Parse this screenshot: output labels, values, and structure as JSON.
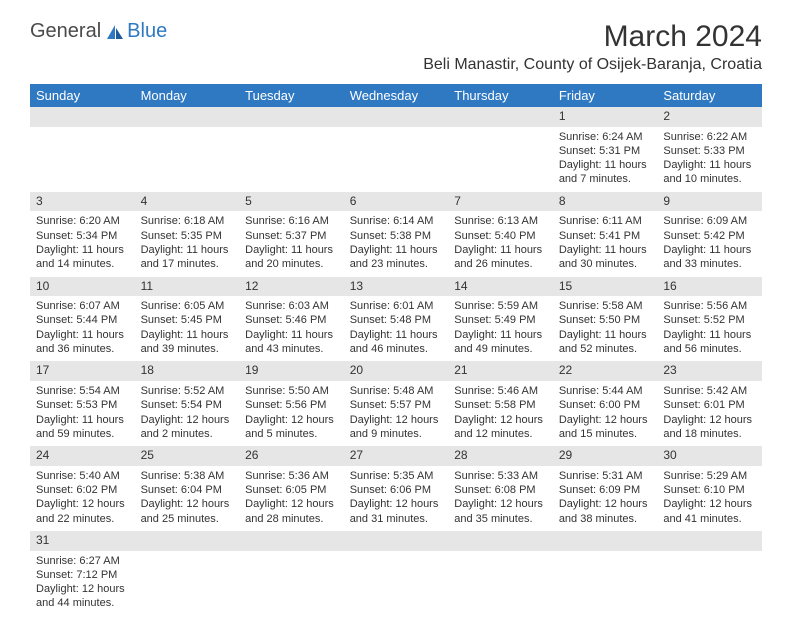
{
  "logo": {
    "word1": "General",
    "word2": "Blue"
  },
  "title": "March 2024",
  "location": "Beli Manastir, County of Osijek-Baranja, Croatia",
  "headers": [
    "Sunday",
    "Monday",
    "Tuesday",
    "Wednesday",
    "Thursday",
    "Friday",
    "Saturday"
  ],
  "colors": {
    "header_bg": "#2f78c2",
    "shade": "#e6e6e6",
    "accent": "#2f78c2"
  },
  "weeks": [
    [
      null,
      null,
      null,
      null,
      null,
      {
        "n": "1",
        "sr": "Sunrise: 6:24 AM",
        "ss": "Sunset: 5:31 PM",
        "d1": "Daylight: 11 hours",
        "d2": "and 7 minutes."
      },
      {
        "n": "2",
        "sr": "Sunrise: 6:22 AM",
        "ss": "Sunset: 5:33 PM",
        "d1": "Daylight: 11 hours",
        "d2": "and 10 minutes."
      }
    ],
    [
      {
        "n": "3",
        "sr": "Sunrise: 6:20 AM",
        "ss": "Sunset: 5:34 PM",
        "d1": "Daylight: 11 hours",
        "d2": "and 14 minutes."
      },
      {
        "n": "4",
        "sr": "Sunrise: 6:18 AM",
        "ss": "Sunset: 5:35 PM",
        "d1": "Daylight: 11 hours",
        "d2": "and 17 minutes."
      },
      {
        "n": "5",
        "sr": "Sunrise: 6:16 AM",
        "ss": "Sunset: 5:37 PM",
        "d1": "Daylight: 11 hours",
        "d2": "and 20 minutes."
      },
      {
        "n": "6",
        "sr": "Sunrise: 6:14 AM",
        "ss": "Sunset: 5:38 PM",
        "d1": "Daylight: 11 hours",
        "d2": "and 23 minutes."
      },
      {
        "n": "7",
        "sr": "Sunrise: 6:13 AM",
        "ss": "Sunset: 5:40 PM",
        "d1": "Daylight: 11 hours",
        "d2": "and 26 minutes."
      },
      {
        "n": "8",
        "sr": "Sunrise: 6:11 AM",
        "ss": "Sunset: 5:41 PM",
        "d1": "Daylight: 11 hours",
        "d2": "and 30 minutes."
      },
      {
        "n": "9",
        "sr": "Sunrise: 6:09 AM",
        "ss": "Sunset: 5:42 PM",
        "d1": "Daylight: 11 hours",
        "d2": "and 33 minutes."
      }
    ],
    [
      {
        "n": "10",
        "sr": "Sunrise: 6:07 AM",
        "ss": "Sunset: 5:44 PM",
        "d1": "Daylight: 11 hours",
        "d2": "and 36 minutes."
      },
      {
        "n": "11",
        "sr": "Sunrise: 6:05 AM",
        "ss": "Sunset: 5:45 PM",
        "d1": "Daylight: 11 hours",
        "d2": "and 39 minutes."
      },
      {
        "n": "12",
        "sr": "Sunrise: 6:03 AM",
        "ss": "Sunset: 5:46 PM",
        "d1": "Daylight: 11 hours",
        "d2": "and 43 minutes."
      },
      {
        "n": "13",
        "sr": "Sunrise: 6:01 AM",
        "ss": "Sunset: 5:48 PM",
        "d1": "Daylight: 11 hours",
        "d2": "and 46 minutes."
      },
      {
        "n": "14",
        "sr": "Sunrise: 5:59 AM",
        "ss": "Sunset: 5:49 PM",
        "d1": "Daylight: 11 hours",
        "d2": "and 49 minutes."
      },
      {
        "n": "15",
        "sr": "Sunrise: 5:58 AM",
        "ss": "Sunset: 5:50 PM",
        "d1": "Daylight: 11 hours",
        "d2": "and 52 minutes."
      },
      {
        "n": "16",
        "sr": "Sunrise: 5:56 AM",
        "ss": "Sunset: 5:52 PM",
        "d1": "Daylight: 11 hours",
        "d2": "and 56 minutes."
      }
    ],
    [
      {
        "n": "17",
        "sr": "Sunrise: 5:54 AM",
        "ss": "Sunset: 5:53 PM",
        "d1": "Daylight: 11 hours",
        "d2": "and 59 minutes."
      },
      {
        "n": "18",
        "sr": "Sunrise: 5:52 AM",
        "ss": "Sunset: 5:54 PM",
        "d1": "Daylight: 12 hours",
        "d2": "and 2 minutes."
      },
      {
        "n": "19",
        "sr": "Sunrise: 5:50 AM",
        "ss": "Sunset: 5:56 PM",
        "d1": "Daylight: 12 hours",
        "d2": "and 5 minutes."
      },
      {
        "n": "20",
        "sr": "Sunrise: 5:48 AM",
        "ss": "Sunset: 5:57 PM",
        "d1": "Daylight: 12 hours",
        "d2": "and 9 minutes."
      },
      {
        "n": "21",
        "sr": "Sunrise: 5:46 AM",
        "ss": "Sunset: 5:58 PM",
        "d1": "Daylight: 12 hours",
        "d2": "and 12 minutes."
      },
      {
        "n": "22",
        "sr": "Sunrise: 5:44 AM",
        "ss": "Sunset: 6:00 PM",
        "d1": "Daylight: 12 hours",
        "d2": "and 15 minutes."
      },
      {
        "n": "23",
        "sr": "Sunrise: 5:42 AM",
        "ss": "Sunset: 6:01 PM",
        "d1": "Daylight: 12 hours",
        "d2": "and 18 minutes."
      }
    ],
    [
      {
        "n": "24",
        "sr": "Sunrise: 5:40 AM",
        "ss": "Sunset: 6:02 PM",
        "d1": "Daylight: 12 hours",
        "d2": "and 22 minutes."
      },
      {
        "n": "25",
        "sr": "Sunrise: 5:38 AM",
        "ss": "Sunset: 6:04 PM",
        "d1": "Daylight: 12 hours",
        "d2": "and 25 minutes."
      },
      {
        "n": "26",
        "sr": "Sunrise: 5:36 AM",
        "ss": "Sunset: 6:05 PM",
        "d1": "Daylight: 12 hours",
        "d2": "and 28 minutes."
      },
      {
        "n": "27",
        "sr": "Sunrise: 5:35 AM",
        "ss": "Sunset: 6:06 PM",
        "d1": "Daylight: 12 hours",
        "d2": "and 31 minutes."
      },
      {
        "n": "28",
        "sr": "Sunrise: 5:33 AM",
        "ss": "Sunset: 6:08 PM",
        "d1": "Daylight: 12 hours",
        "d2": "and 35 minutes."
      },
      {
        "n": "29",
        "sr": "Sunrise: 5:31 AM",
        "ss": "Sunset: 6:09 PM",
        "d1": "Daylight: 12 hours",
        "d2": "and 38 minutes."
      },
      {
        "n": "30",
        "sr": "Sunrise: 5:29 AM",
        "ss": "Sunset: 6:10 PM",
        "d1": "Daylight: 12 hours",
        "d2": "and 41 minutes."
      }
    ],
    [
      {
        "n": "31",
        "sr": "Sunrise: 6:27 AM",
        "ss": "Sunset: 7:12 PM",
        "d1": "Daylight: 12 hours",
        "d2": "and 44 minutes."
      },
      null,
      null,
      null,
      null,
      null,
      null
    ]
  ]
}
